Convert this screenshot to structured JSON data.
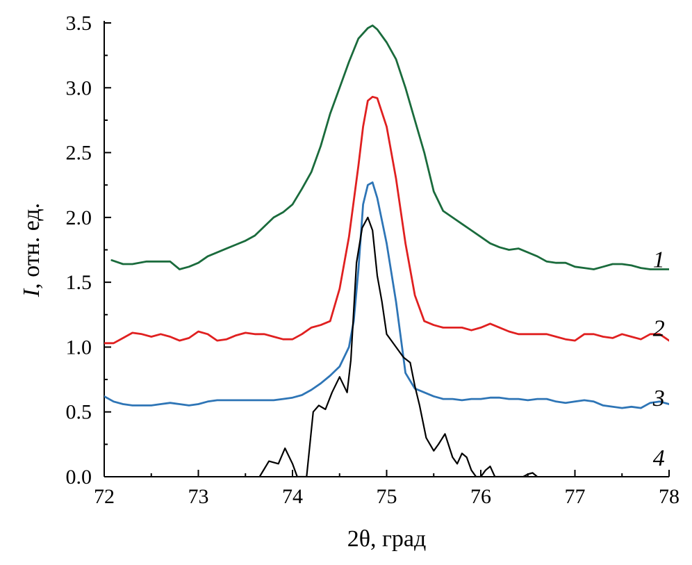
{
  "chart_data": {
    "type": "line",
    "xlabel": "2θ, град",
    "ylabel_italic": "I",
    "ylabel_rest": ", отн. ед.",
    "xlim": [
      72,
      78
    ],
    "ylim": [
      0,
      3.5
    ],
    "x_ticks": [
      "72",
      "73",
      "74",
      "75",
      "76",
      "77",
      "78"
    ],
    "y_ticks": [
      "0.0",
      "0.5",
      "1.0",
      "1.5",
      "2.0",
      "2.5",
      "3.0",
      "3.5"
    ],
    "grid": false,
    "series": [
      {
        "name": "1",
        "color": "#1a6b3c",
        "x": [
          72.08,
          72.2,
          72.3,
          72.45,
          72.6,
          72.7,
          72.8,
          72.9,
          73.0,
          73.1,
          73.2,
          73.3,
          73.4,
          73.5,
          73.6,
          73.7,
          73.8,
          73.9,
          74.0,
          74.1,
          74.2,
          74.3,
          74.4,
          74.5,
          74.6,
          74.7,
          74.8,
          74.85,
          74.9,
          75.0,
          75.1,
          75.2,
          75.3,
          75.4,
          75.5,
          75.6,
          75.7,
          75.8,
          75.9,
          76.0,
          76.1,
          76.2,
          76.3,
          76.4,
          76.5,
          76.6,
          76.7,
          76.8,
          76.9,
          77.0,
          77.1,
          77.2,
          77.3,
          77.4,
          77.5,
          77.6,
          77.7,
          77.8,
          77.9,
          78.0
        ],
        "y": [
          1.67,
          1.64,
          1.64,
          1.66,
          1.66,
          1.66,
          1.6,
          1.62,
          1.65,
          1.7,
          1.73,
          1.76,
          1.79,
          1.82,
          1.86,
          1.93,
          2.0,
          2.04,
          2.1,
          2.22,
          2.35,
          2.55,
          2.8,
          3.0,
          3.2,
          3.38,
          3.46,
          3.48,
          3.45,
          3.35,
          3.22,
          3.0,
          2.75,
          2.5,
          2.2,
          2.05,
          2.0,
          1.95,
          1.9,
          1.85,
          1.8,
          1.77,
          1.75,
          1.76,
          1.73,
          1.7,
          1.66,
          1.65,
          1.65,
          1.62,
          1.61,
          1.6,
          1.62,
          1.64,
          1.64,
          1.63,
          1.61,
          1.6,
          1.6,
          1.6
        ]
      },
      {
        "name": "2",
        "color": "#e02020",
        "x": [
          72.0,
          72.1,
          72.2,
          72.3,
          72.4,
          72.5,
          72.6,
          72.7,
          72.8,
          72.9,
          73.0,
          73.1,
          73.2,
          73.3,
          73.4,
          73.5,
          73.6,
          73.7,
          73.8,
          73.9,
          74.0,
          74.1,
          74.2,
          74.3,
          74.4,
          74.5,
          74.6,
          74.7,
          74.75,
          74.8,
          74.85,
          74.9,
          75.0,
          75.1,
          75.2,
          75.3,
          75.4,
          75.5,
          75.6,
          75.7,
          75.8,
          75.9,
          76.0,
          76.1,
          76.2,
          76.3,
          76.4,
          76.5,
          76.6,
          76.7,
          76.8,
          76.9,
          77.0,
          77.1,
          77.2,
          77.3,
          77.4,
          77.5,
          77.6,
          77.7,
          77.8,
          77.9,
          78.0
        ],
        "y": [
          1.03,
          1.03,
          1.07,
          1.11,
          1.1,
          1.08,
          1.1,
          1.08,
          1.05,
          1.07,
          1.12,
          1.1,
          1.05,
          1.06,
          1.09,
          1.11,
          1.1,
          1.1,
          1.08,
          1.06,
          1.06,
          1.1,
          1.15,
          1.17,
          1.2,
          1.45,
          1.85,
          2.4,
          2.7,
          2.9,
          2.93,
          2.92,
          2.7,
          2.3,
          1.8,
          1.4,
          1.2,
          1.17,
          1.15,
          1.15,
          1.15,
          1.13,
          1.15,
          1.18,
          1.15,
          1.12,
          1.1,
          1.1,
          1.1,
          1.1,
          1.08,
          1.06,
          1.05,
          1.1,
          1.1,
          1.08,
          1.07,
          1.1,
          1.08,
          1.06,
          1.1,
          1.1,
          1.05
        ]
      },
      {
        "name": "3",
        "color": "#2e75b6",
        "x": [
          72.0,
          72.1,
          72.2,
          72.3,
          72.4,
          72.5,
          72.6,
          72.7,
          72.8,
          72.9,
          73.0,
          73.1,
          73.2,
          73.3,
          73.4,
          73.5,
          73.6,
          73.7,
          73.8,
          73.9,
          74.0,
          74.1,
          74.2,
          74.3,
          74.4,
          74.5,
          74.6,
          74.65,
          74.7,
          74.75,
          74.8,
          74.85,
          74.9,
          75.0,
          75.1,
          75.2,
          75.3,
          75.4,
          75.5,
          75.6,
          75.7,
          75.8,
          75.9,
          76.0,
          76.1,
          76.2,
          76.3,
          76.4,
          76.5,
          76.6,
          76.7,
          76.8,
          76.9,
          77.0,
          77.1,
          77.2,
          77.3,
          77.4,
          77.5,
          77.6,
          77.7,
          77.8,
          77.9,
          78.0
        ],
        "y": [
          0.62,
          0.58,
          0.56,
          0.55,
          0.55,
          0.55,
          0.56,
          0.57,
          0.56,
          0.55,
          0.56,
          0.58,
          0.59,
          0.59,
          0.59,
          0.59,
          0.59,
          0.59,
          0.59,
          0.6,
          0.61,
          0.63,
          0.67,
          0.72,
          0.78,
          0.85,
          1.0,
          1.2,
          1.6,
          2.1,
          2.25,
          2.27,
          2.15,
          1.8,
          1.35,
          0.8,
          0.68,
          0.65,
          0.62,
          0.6,
          0.6,
          0.59,
          0.6,
          0.6,
          0.61,
          0.61,
          0.6,
          0.6,
          0.59,
          0.6,
          0.6,
          0.58,
          0.57,
          0.58,
          0.59,
          0.58,
          0.55,
          0.54,
          0.53,
          0.54,
          0.53,
          0.57,
          0.58,
          0.56
        ]
      },
      {
        "name": "4",
        "color": "#000000",
        "x": [
          73.65,
          73.75,
          73.85,
          73.92,
          74.0,
          74.05,
          74.15,
          74.22,
          74.28,
          74.35,
          74.42,
          74.5,
          74.58,
          74.62,
          74.68,
          74.74,
          74.8,
          74.85,
          74.9,
          74.95,
          75.0,
          75.05,
          75.1,
          75.18,
          75.25,
          75.3,
          75.35,
          75.42,
          75.5,
          75.55,
          75.62,
          75.7,
          75.75,
          75.8,
          75.85,
          75.9,
          75.95,
          76.0,
          76.05,
          76.1,
          76.15,
          76.25,
          76.35,
          76.45,
          76.5,
          76.55,
          76.6
        ],
        "y": [
          0.0,
          0.12,
          0.1,
          0.22,
          0.1,
          0.0,
          0.0,
          0.5,
          0.55,
          0.52,
          0.65,
          0.77,
          0.65,
          0.9,
          1.65,
          1.92,
          2.0,
          1.9,
          1.55,
          1.35,
          1.1,
          1.05,
          1.0,
          0.92,
          0.88,
          0.7,
          0.55,
          0.3,
          0.2,
          0.25,
          0.33,
          0.15,
          0.1,
          0.18,
          0.15,
          0.05,
          0.0,
          0.0,
          0.05,
          0.08,
          0.0,
          0.0,
          0.0,
          0.0,
          0.02,
          0.03,
          0.0
        ]
      }
    ],
    "series_label_positions": [
      {
        "name": "1",
        "x": 77.95,
        "y": 1.68
      },
      {
        "name": "2",
        "x": 77.95,
        "y": 1.15
      },
      {
        "name": "3",
        "x": 77.95,
        "y": 0.61
      },
      {
        "name": "4",
        "x": 77.95,
        "y": 0.15
      }
    ]
  }
}
